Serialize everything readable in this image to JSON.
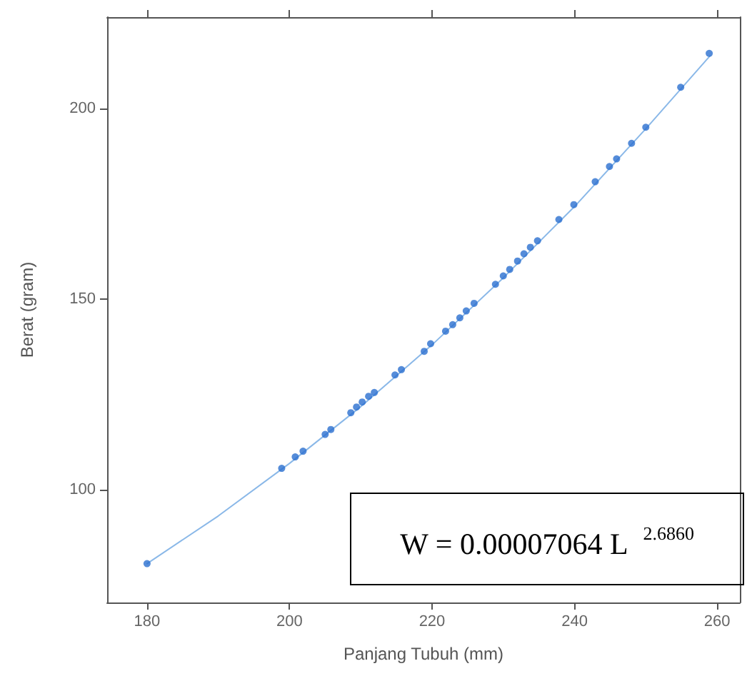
{
  "chart_data": {
    "type": "scatter",
    "xlabel": "Panjang Tubuh (mm)",
    "ylabel": "Berat (gram)",
    "annotations": [
      "W = 0.00007064 L $^{2.6860}$"
    ],
    "xlim": [
      174.4,
      263.2
    ],
    "ylim": [
      70.4,
      224
    ],
    "xticks": [
      180,
      200,
      220,
      240,
      260
    ],
    "yticks": [
      100,
      150,
      200
    ],
    "grid": false,
    "marker": "circle",
    "series": [
      {
        "type": "line",
        "color": "#8ab8e8",
        "line_style": "solid",
        "marker": "none",
        "x": [
          180,
          190,
          200,
          210,
          220,
          230,
          240,
          250,
          259
        ],
        "values": [
          80.6,
          93.1,
          106.9,
          121.8,
          138.0,
          155.6,
          174.3,
          194.7,
          213.8
        ]
      },
      {
        "color": "#2a6fd0",
        "x": [
          180,
          198.9,
          200.8,
          201.9,
          205.0,
          205.8,
          208.6,
          209.4,
          210.2,
          211.1,
          211.9,
          214.8,
          215.7,
          218.9,
          219.8,
          221.9,
          222.9,
          223.9,
          224.8,
          225.9,
          228.9,
          230.0,
          230.9,
          232.0,
          232.9,
          233.8,
          234.8,
          237.8,
          239.9,
          242.9,
          244.9,
          245.9,
          248.0,
          250.0,
          254.9,
          258.9
        ],
        "values": [
          80.6,
          105.6,
          108.6,
          110.1,
          114.5,
          115.8,
          120.2,
          121.7,
          123.0,
          124.5,
          125.5,
          130.1,
          131.5,
          136.3,
          138.3,
          141.6,
          143.3,
          145.1,
          146.9,
          148.9,
          153.9,
          156.1,
          157.8,
          160.0,
          161.9,
          163.6,
          165.3,
          170.9,
          174.8,
          180.8,
          184.8,
          186.8,
          190.9,
          195.1,
          205.6,
          214.5
        ]
      }
    ]
  }
}
